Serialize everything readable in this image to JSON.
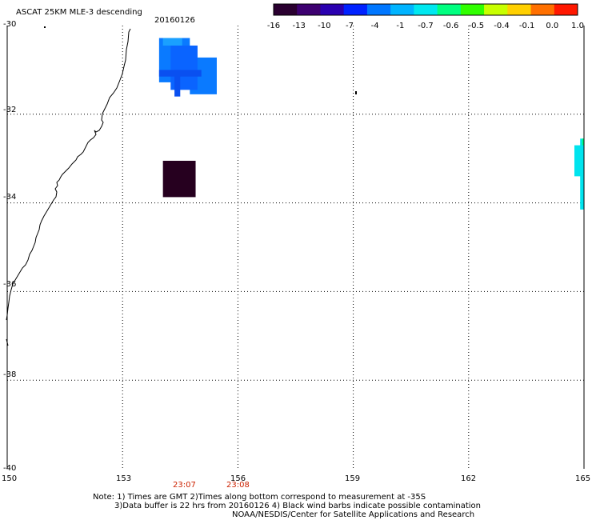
{
  "header": {
    "title": "ASCAT 25KM MLE-3 descending",
    "date": "20160126"
  },
  "colorbar": {
    "labels": [
      "-16",
      "-13",
      "-10",
      "-7",
      "-4",
      "-1",
      "-0.7",
      "-0.6",
      "-0.5",
      "-0.4",
      "-0.1",
      "0.0",
      "1.0"
    ],
    "colors": [
      "#2a0030",
      "#3d0070",
      "#2a00b0",
      "#0022ff",
      "#0077ff",
      "#00b4ff",
      "#00e8f0",
      "#00ff80",
      "#30ff00",
      "#c8ff00",
      "#ffd000",
      "#ff7000",
      "#ff1800"
    ]
  },
  "map": {
    "lat_labels": [
      "-30",
      "-32",
      "-34",
      "-36",
      "-38",
      "-40"
    ],
    "lon_labels": [
      "150",
      "153",
      "156",
      "159",
      "162",
      "165"
    ],
    "times": [
      "23:07",
      "23:08"
    ],
    "cells": [
      {
        "lon_min": 153.95,
        "lon_max": 154.75,
        "lat_min": -31.28,
        "lat_max": -30.28,
        "value": -4,
        "color": "#0a7aff"
      },
      {
        "lon_min": 154.75,
        "lon_max": 155.45,
        "lat_min": -31.55,
        "lat_max": -30.72,
        "value": -4,
        "color": "#0a7aff"
      },
      {
        "lon_min": 154.25,
        "lon_max": 154.95,
        "lat_min": -31.45,
        "lat_max": -30.45,
        "value": -5,
        "color": "#0a64ff"
      },
      {
        "lon_min": 154.05,
        "lon_max": 154.55,
        "lat_min": -30.45,
        "lat_max": -30.28,
        "value": -2,
        "color": "#1aa0ff"
      },
      {
        "lon_min": 153.95,
        "lon_max": 155.05,
        "lat_min": -31.15,
        "lat_max": -31.0,
        "value": -7,
        "color": "#0a50f0"
      },
      {
        "lon_min": 154.35,
        "lon_max": 154.5,
        "lat_min": -31.6,
        "lat_max": -31.0,
        "value": -7,
        "color": "#0a50f0"
      },
      {
        "lon_min": 154.05,
        "lon_max": 154.9,
        "lat_min": -33.87,
        "lat_max": -33.05,
        "value": -16,
        "color": "#26001f"
      },
      {
        "lon_min": 164.75,
        "lon_max": 165.0,
        "lat_min": -33.4,
        "lat_max": -32.7,
        "value": -1,
        "color": "#00e4ee"
      },
      {
        "lon_min": 164.9,
        "lon_max": 165.0,
        "lat_min": -34.15,
        "lat_max": -32.55,
        "value": -1,
        "color": "#00e4ee"
      },
      {
        "lon_min": 164.95,
        "lon_max": 165.0,
        "lat_min": -32.7,
        "lat_max": -32.55,
        "value": -0.6,
        "color": "#00ff80"
      }
    ]
  },
  "notes": {
    "line1": "Note: 1) Times are GMT 2)Times along bottom correspond to measurement at -35S",
    "line2": "3)Data buffer is 22 hrs from 20160126 4) Black wind barbs indicate possible contamination",
    "line3": "NOAA/NESDIS/Center for Satellite Applications and Research"
  }
}
